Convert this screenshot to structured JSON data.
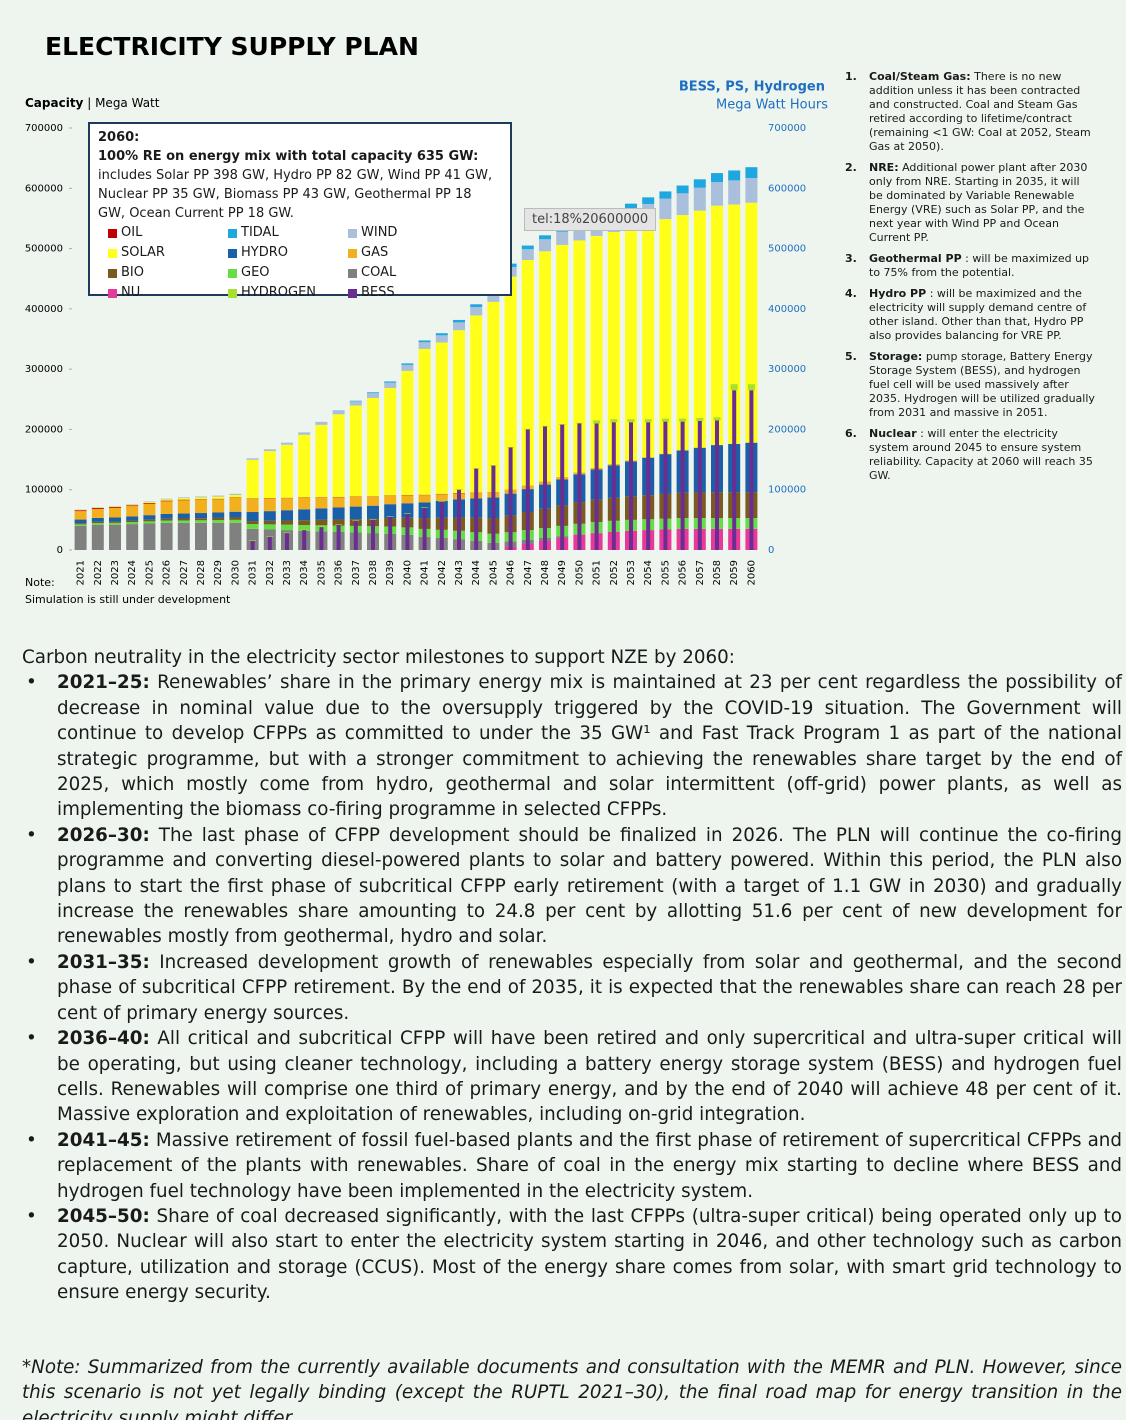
{
  "chart_data": {
    "type": "bar",
    "stacked": true,
    "title": "ELECTRICITY SUPPLY PLAN",
    "y_label": {
      "bold": "Capacity",
      "text": "| Mega Watt"
    },
    "y2_label": {
      "bold": "BESS, PS, Hydrogen",
      "text": "Mega Watt Hours"
    },
    "annotation": {
      "title": "2060:",
      "subtitle": "100% RE on energy mix with total capacity 635 GW:",
      "text": "includes Solar PP 398 GW, Hydro PP 82 GW, Wind PP 41 GW, Nuclear PP 35 GW, Biomass PP 43 GW, Geothermal PP 18 GW, Ocean Current PP 18 GW."
    },
    "tooltip": "tel:18%20600000",
    "note_label": "Note:",
    "note": "Simulation is still under development",
    "categories": [
      "2021",
      "2022",
      "2023",
      "2024",
      "2025",
      "2026",
      "2027",
      "2028",
      "2029",
      "2030",
      "2031",
      "2032",
      "2033",
      "2034",
      "2035",
      "2036",
      "2037",
      "2038",
      "2039",
      "2040",
      "2041",
      "2042",
      "2043",
      "2044",
      "2045",
      "2046",
      "2047",
      "2048",
      "2049",
      "2050",
      "2051",
      "2052",
      "2053",
      "2054",
      "2055",
      "2056",
      "2057",
      "2058",
      "2059",
      "2060"
    ],
    "ylim": [
      0,
      700000
    ],
    "yticks": [
      0,
      100000,
      200000,
      300000,
      400000,
      500000,
      600000,
      700000
    ],
    "y2lim": [
      0,
      700000
    ],
    "y2ticks": [
      0,
      100000,
      200000,
      300000,
      400000,
      500000,
      600000,
      700000
    ],
    "series": [
      {
        "name": "NU",
        "color": "#e8399a",
        "values": [
          0,
          0,
          0,
          0,
          0,
          0,
          0,
          0,
          0,
          0,
          0,
          0,
          0,
          0,
          0,
          0,
          0,
          0,
          0,
          0,
          0,
          0,
          0,
          0,
          0,
          5000,
          10000,
          15000,
          20000,
          25000,
          28000,
          30000,
          32000,
          33000,
          34000,
          35000,
          35000,
          35000,
          35000,
          35000
        ]
      },
      {
        "name": "COAL",
        "color": "#808080",
        "values": [
          40000,
          42000,
          42000,
          43000,
          44000,
          45000,
          45000,
          45000,
          45000,
          45000,
          35000,
          34000,
          33000,
          32000,
          31000,
          30000,
          29000,
          28000,
          27000,
          25000,
          22000,
          20000,
          18000,
          15000,
          12000,
          9000,
          7000,
          5000,
          3000,
          1000,
          500,
          500,
          0,
          0,
          0,
          0,
          0,
          0,
          0,
          0
        ]
      },
      {
        "name": "GEO",
        "color": "#66dd44",
        "values": [
          2500,
          2700,
          3000,
          3200,
          3500,
          3800,
          4000,
          4300,
          4600,
          5000,
          8000,
          8500,
          9000,
          9500,
          10000,
          10500,
          11000,
          11500,
          12000,
          12500,
          13000,
          13500,
          14000,
          14500,
          15000,
          15500,
          16000,
          16500,
          17000,
          17500,
          18000,
          18000,
          18000,
          18000,
          18000,
          18000,
          18000,
          18000,
          18000,
          18000
        ]
      },
      {
        "name": "BIO",
        "color": "#7a5a1e",
        "values": [
          2000,
          2200,
          2400,
          2600,
          2800,
          3000,
          3200,
          3400,
          3600,
          4000,
          5000,
          6000,
          7000,
          8000,
          9000,
          10000,
          11000,
          12000,
          14000,
          16000,
          18000,
          20000,
          22000,
          24000,
          26000,
          28000,
          30000,
          32000,
          34000,
          36000,
          37000,
          38000,
          39000,
          40000,
          41000,
          42000,
          42500,
          43000,
          43000,
          43000
        ]
      },
      {
        "name": "HYDRO",
        "color": "#1a5fa8",
        "values": [
          6000,
          6300,
          6600,
          7000,
          7500,
          8000,
          8300,
          8600,
          9000,
          9500,
          15000,
          16000,
          17000,
          18000,
          19000,
          20000,
          21000,
          22000,
          23000,
          24000,
          26000,
          28000,
          30000,
          32000,
          34000,
          36000,
          38000,
          40000,
          43000,
          46000,
          50000,
          54000,
          58000,
          62000,
          66000,
          70000,
          74000,
          78000,
          80000,
          82000
        ]
      },
      {
        "name": "GAS",
        "color": "#f2b01e",
        "values": [
          14000,
          15000,
          16000,
          17000,
          19000,
          21000,
          22000,
          22000,
          22000,
          23000,
          22000,
          21000,
          20000,
          19000,
          18000,
          17000,
          16000,
          15000,
          14000,
          13000,
          12000,
          11000,
          10000,
          9000,
          8000,
          7000,
          6000,
          5000,
          4000,
          3000,
          2500,
          2000,
          1500,
          1000,
          800,
          600,
          400,
          200,
          100,
          0
        ]
      },
      {
        "name": "OIL",
        "color": "#c00000",
        "values": [
          1500,
          1500,
          1400,
          1300,
          1200,
          1100,
          1000,
          900,
          800,
          700,
          600,
          600,
          600,
          600,
          600,
          600,
          600,
          600,
          600,
          600,
          600,
          600,
          600,
          600,
          600,
          0,
          0,
          0,
          0,
          0,
          0,
          0,
          0,
          0,
          0,
          0,
          0,
          0,
          0,
          0
        ]
      },
      {
        "name": "SOLAR",
        "color": "#ffff1a",
        "values": [
          500,
          700,
          900,
          1200,
          1500,
          2000,
          2500,
          3000,
          3500,
          4000,
          64000,
          78000,
          88000,
          104000,
          120000,
          137000,
          151000,
          163000,
          178000,
          206000,
          242000,
          251000,
          270000,
          294000,
          316000,
          353000,
          374000,
          382000,
          385000,
          385000,
          385000,
          385000,
          386000,
          388000,
          389000,
          390000,
          393000,
          397000,
          397000,
          398000
        ]
      },
      {
        "name": "WIND",
        "color": "#a9bfdc",
        "values": [
          500,
          600,
          700,
          800,
          1000,
          1200,
          1400,
          1600,
          1800,
          2000,
          2500,
          3000,
          3500,
          4000,
          5000,
          6000,
          7000,
          8000,
          9000,
          10000,
          11000,
          12000,
          13000,
          14000,
          15000,
          16000,
          18000,
          20000,
          22000,
          24000,
          26000,
          28000,
          30000,
          32000,
          34000,
          36000,
          38000,
          39000,
          40000,
          41000
        ]
      },
      {
        "name": "TIDAL",
        "color": "#1fa8e0",
        "values": [
          0,
          0,
          0,
          0,
          0,
          0,
          0,
          0,
          0,
          0,
          0,
          0,
          0,
          0,
          0,
          500,
          1000,
          1500,
          2000,
          2500,
          3000,
          3500,
          4000,
          4500,
          5000,
          5500,
          6000,
          6500,
          7000,
          7500,
          8000,
          9000,
          10000,
          11000,
          12000,
          13000,
          14000,
          15000,
          16500,
          18000
        ]
      },
      {
        "name": "BESS",
        "color": "#6a2d91",
        "axis": "y2",
        "values": [
          0,
          0,
          0,
          0,
          0,
          0,
          0,
          0,
          0,
          0,
          15000,
          22000,
          28000,
          33000,
          38000,
          42000,
          48000,
          50000,
          55000,
          60000,
          70000,
          80000,
          100000,
          135000,
          140000,
          170000,
          200000,
          205000,
          208000,
          210000,
          210000,
          212000,
          212000,
          212000,
          213000,
          213000,
          214000,
          215000,
          265000,
          265000
        ]
      },
      {
        "name": "HYDROGEN",
        "color": "#a8e030",
        "axis": "y2",
        "values": [
          0,
          0,
          0,
          0,
          0,
          0,
          0,
          0,
          0,
          0,
          1000,
          1000,
          1000,
          1000,
          1000,
          1000,
          1000,
          1000,
          1000,
          1000,
          1000,
          1000,
          1000,
          1000,
          1000,
          1000,
          1000,
          1000,
          1000,
          1000,
          5000,
          5000,
          5000,
          5000,
          5000,
          5000,
          5000,
          5000,
          10000,
          10000
        ]
      }
    ]
  },
  "notes": [
    {
      "number": "1.",
      "title": "Coal/Steam Gas:",
      "text": "There is no new addition unless it has been contracted and constructed. Coal and Steam Gas retired according to lifetime/contract (remaining <1 GW: Coal at 2052, Steam Gas at 2050)."
    },
    {
      "number": "2.",
      "title": "NRE:",
      "text": "Additional power plant after 2030 only from NRE. Starting in 2035, it will be dominated by Variable Renewable Energy (VRE) such as Solar PP, and the next year with Wind PP and Ocean Current PP."
    },
    {
      "number": "3.",
      "title": "Geothermal PP",
      "text": ": will be maximized up to 75% from the potential."
    },
    {
      "number": "4.",
      "title": "Hydro PP",
      "text": ": will be maximized and the electricity will supply demand centre of other island. Other than that, Hydro PP also provides balancing for VRE PP."
    },
    {
      "number": "5.",
      "title": "Storage:",
      "text": "pump storage, Battery Energy Storage System (BESS), and hydrogen fuel cell will be used massively after 2035. Hydrogen will be utilized gradually from 2031 and massive in 2051."
    },
    {
      "number": "6.",
      "title": "Nuclear",
      "text": ": will enter the electricity system around 2045 to ensure system reliability. Capacity at 2060 will reach 35 GW."
    }
  ],
  "body": {
    "intro": "Carbon neutrality in the electricity sector milestones to support NZE by 2060:",
    "items": [
      {
        "lead": "2021–25:",
        "text": " Renewables’ share in the primary energy mix is maintained at 23 per cent regardless the possibility of decrease in nominal value due to the oversupply triggered by the COVID-19 situation. The Government will continue to develop CFPPs as committed to under the 35 GW¹ and Fast Track Program 1 as part of the national strategic programme, but with a stronger commitment to achieving the renewables share target by the end of 2025, which mostly come from hydro, geothermal and solar intermittent (off-grid) power plants, as well as implementing the biomass co-firing programme in selected CFPPs."
      },
      {
        "lead": "2026–30:",
        "text": " The last phase of CFPP development should be finalized in 2026. The PLN will continue the co-firing programme and converting diesel-powered plants to solar and battery powered. Within this period, the PLN also plans to start the first phase of subcritical CFPP early retirement (with a target of 1.1 GW in 2030) and gradually increase the renewables share amounting to 24.8 per cent by allotting 51.6 per cent of new development for renewables mostly from geothermal, hydro and solar."
      },
      {
        "lead": "2031–35:",
        "text": " Increased development growth of renewables especially from solar and geothermal, and the second phase of subcritical CFPP retirement. By the end of 2035, it is expected that the renewables share can reach 28 per cent of primary energy sources."
      },
      {
        "lead": "2036–40:",
        "text": " All critical and subcritical CFPP will have been retired and only supercritical and ultra-super critical will be operating, but using cleaner technology, including a battery energy storage system (BESS) and hydrogen fuel cells. Renewables will comprise one third of primary energy, and by the end of 2040 will achieve 48 per cent of it. Massive exploration and exploitation of renewables, including on-grid integration."
      },
      {
        "lead": "2041–45:",
        "text": " Massive retirement of fossil fuel-based plants and the first phase of retirement of supercritical CFPPs and replacement of the plants with renewables. Share of coal in the energy mix starting to decline where BESS and hydrogen fuel technology have been implemented in the electricity system."
      },
      {
        "lead": "2045–50:",
        "text": " Share of coal decreased significantly, with the last CFPPs (ultra-super critical) being operated only up to 2050. Nuclear will also start to enter the electricity system starting in 2046, and other technology such as carbon capture, utilization and storage (CCUS). Most of the energy share comes from solar, with smart grid technology to ensure energy security."
      }
    ],
    "footnote": "*Note: Summarized from the currently available documents and consultation with the MEMR and PLN. However, since this scenario is not yet legally binding (except the RUPTL 2021–30), the final road map for energy transition in the electricity supply might differ."
  }
}
